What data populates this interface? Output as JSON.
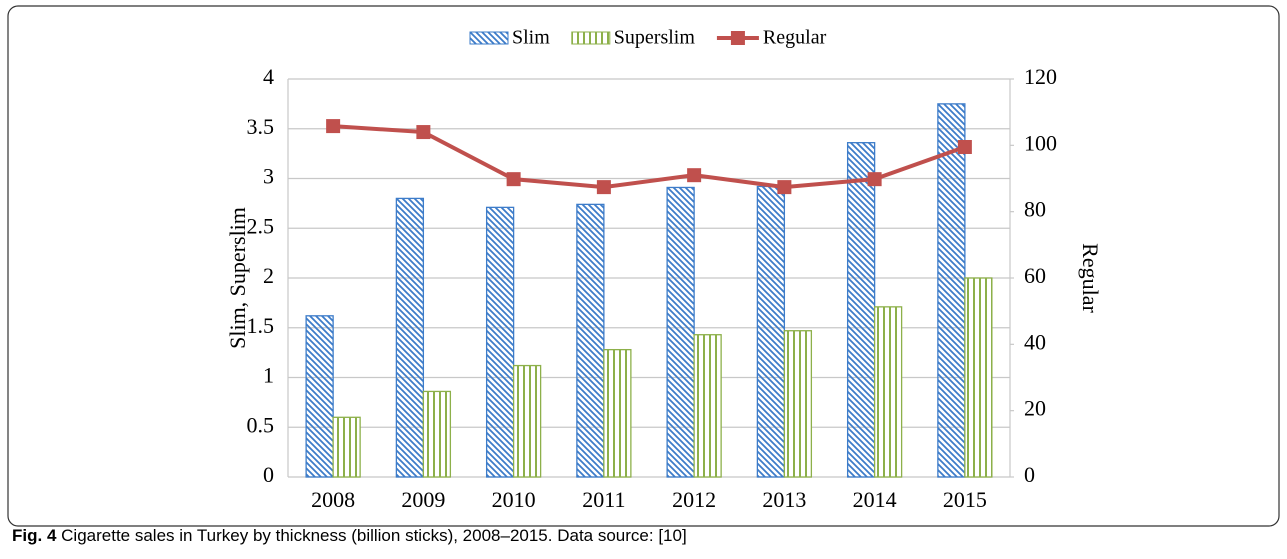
{
  "chart_data": {
    "type": "bar",
    "categories": [
      "2008",
      "2009",
      "2010",
      "2011",
      "2012",
      "2013",
      "2014",
      "2015"
    ],
    "series": [
      {
        "name": "Slim",
        "color": "#3d7cc9",
        "pattern": "diagonal",
        "values": [
          1.62,
          2.8,
          2.71,
          2.74,
          2.91,
          2.92,
          3.36,
          3.75
        ]
      },
      {
        "name": "Superslim",
        "color": "#8db04a",
        "pattern": "vertical",
        "values": [
          0.6,
          0.86,
          1.12,
          1.28,
          1.43,
          1.47,
          1.71,
          2.0
        ]
      },
      {
        "name": "Regular",
        "type": "line",
        "axis": "y2",
        "color": "#c0504d",
        "values": [
          105.8,
          104.0,
          89.8,
          87.4,
          91.0,
          87.4,
          89.8,
          99.5
        ]
      }
    ],
    "ylabel": "Slim, Superslim",
    "y2label": "Regular",
    "ylim": [
      0,
      4
    ],
    "yticks": [
      0,
      0.5,
      1,
      1.5,
      2,
      2.5,
      3,
      3.5,
      4
    ],
    "y2lim": [
      0,
      120
    ],
    "y2ticks": [
      0,
      20,
      40,
      60,
      80,
      100,
      120
    ],
    "grid": true,
    "legend": "top",
    "caption_label": "Fig. 4",
    "caption": "Cigarette sales in Turkey by thickness (billion sticks), 2008–2015. Data source: [10]"
  }
}
